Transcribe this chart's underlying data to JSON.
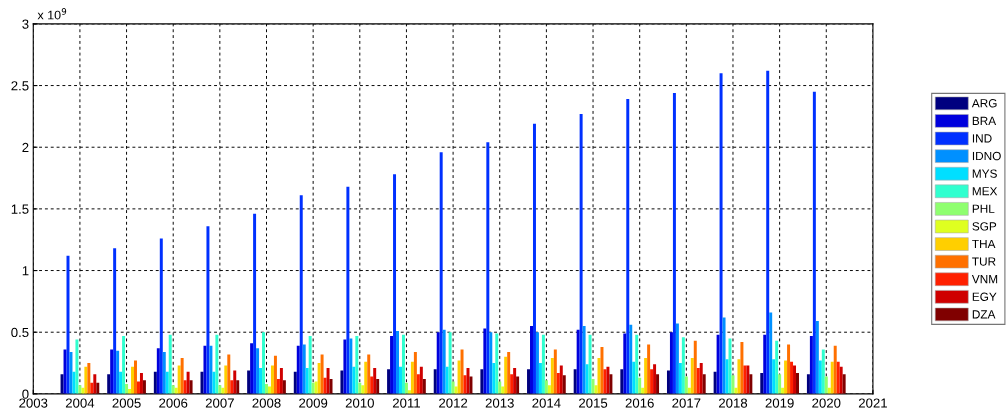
{
  "chart_data": {
    "type": "bar",
    "x": [
      2004,
      2005,
      2006,
      2007,
      2008,
      2009,
      2010,
      2011,
      2012,
      2013,
      2014,
      2015,
      2016,
      2017,
      2018,
      2019,
      2020
    ],
    "xlim": [
      2003,
      2021
    ],
    "xticks": [
      2003,
      2004,
      2005,
      2006,
      2007,
      2008,
      2009,
      2010,
      2011,
      2012,
      2013,
      2014,
      2015,
      2016,
      2017,
      2018,
      2019,
      2020,
      2021
    ],
    "ylim": [
      0,
      3
    ],
    "yticks": [
      0,
      0.5,
      1,
      1.5,
      2,
      2.5,
      3
    ],
    "grid": true,
    "legend": "right",
    "annotations": [
      "x 10$^{9}$"
    ],
    "series": [
      {
        "name": "ARG",
        "color": "#00007f",
        "values": [
          0.16,
          0.16,
          0.18,
          0.18,
          0.19,
          0.18,
          0.19,
          0.2,
          0.2,
          0.2,
          0.2,
          0.2,
          0.2,
          0.19,
          0.18,
          0.17,
          0.16
        ]
      },
      {
        "name": "BRA",
        "color": "#0000dd",
        "values": [
          0.36,
          0.36,
          0.37,
          0.39,
          0.41,
          0.39,
          0.44,
          0.47,
          0.5,
          0.53,
          0.55,
          0.52,
          0.49,
          0.5,
          0.48,
          0.48,
          0.47
        ]
      },
      {
        "name": "IND",
        "color": "#0030ff",
        "values": [
          1.12,
          1.18,
          1.26,
          1.36,
          1.46,
          1.61,
          1.68,
          1.78,
          1.96,
          2.04,
          2.19,
          2.27,
          2.39,
          2.44,
          2.6,
          2.62,
          2.45
        ]
      },
      {
        "name": "IDNO",
        "color": "#0090ff",
        "values": [
          0.34,
          0.35,
          0.34,
          0.39,
          0.37,
          0.4,
          0.45,
          0.51,
          0.52,
          0.5,
          0.5,
          0.55,
          0.56,
          0.57,
          0.62,
          0.66,
          0.59
        ]
      },
      {
        "name": "MYS",
        "color": "#00dfff",
        "values": [
          0.18,
          0.18,
          0.18,
          0.18,
          0.21,
          0.21,
          0.22,
          0.22,
          0.22,
          0.25,
          0.25,
          0.24,
          0.26,
          0.25,
          0.28,
          0.28,
          0.27
        ]
      },
      {
        "name": "MEX",
        "color": "#30ffcf",
        "values": [
          0.44,
          0.47,
          0.48,
          0.48,
          0.5,
          0.47,
          0.47,
          0.48,
          0.5,
          0.49,
          0.48,
          0.48,
          0.48,
          0.46,
          0.45,
          0.43,
          0.36
        ]
      },
      {
        "name": "PHL",
        "color": "#8fff6f",
        "values": [
          0.07,
          0.08,
          0.07,
          0.07,
          0.08,
          0.09,
          0.09,
          0.09,
          0.1,
          0.1,
          0.11,
          0.12,
          0.13,
          0.14,
          0.15,
          0.16,
          0.14
        ]
      },
      {
        "name": "SGP",
        "color": "#dfff20",
        "values": [
          0.05,
          0.04,
          0.05,
          0.05,
          0.06,
          0.1,
          0.07,
          0.03,
          0.06,
          0.06,
          0.07,
          0.07,
          0.05,
          0.05,
          0.05,
          0.05,
          0.05
        ]
      },
      {
        "name": "THA",
        "color": "#ffcf00",
        "values": [
          0.22,
          0.22,
          0.23,
          0.23,
          0.23,
          0.25,
          0.26,
          0.26,
          0.27,
          0.3,
          0.29,
          0.29,
          0.29,
          0.29,
          0.28,
          0.27,
          0.26
        ]
      },
      {
        "name": "TUR",
        "color": "#ff7000",
        "values": [
          0.25,
          0.27,
          0.29,
          0.32,
          0.31,
          0.32,
          0.32,
          0.34,
          0.36,
          0.34,
          0.36,
          0.38,
          0.4,
          0.43,
          0.42,
          0.4,
          0.39
        ]
      },
      {
        "name": "VNM",
        "color": "#ff2000",
        "values": [
          0.09,
          0.1,
          0.11,
          0.11,
          0.12,
          0.13,
          0.14,
          0.16,
          0.15,
          0.16,
          0.17,
          0.2,
          0.2,
          0.21,
          0.23,
          0.26,
          0.26
        ]
      },
      {
        "name": "EGY",
        "color": "#cf0000",
        "values": [
          0.16,
          0.17,
          0.18,
          0.19,
          0.21,
          0.21,
          0.21,
          0.22,
          0.21,
          0.21,
          0.23,
          0.22,
          0.24,
          0.25,
          0.23,
          0.23,
          0.22
        ]
      },
      {
        "name": "DZA",
        "color": "#800000",
        "values": [
          0.09,
          0.11,
          0.11,
          0.11,
          0.11,
          0.12,
          0.12,
          0.12,
          0.14,
          0.14,
          0.15,
          0.16,
          0.16,
          0.16,
          0.16,
          0.17,
          0.16
        ]
      }
    ]
  }
}
